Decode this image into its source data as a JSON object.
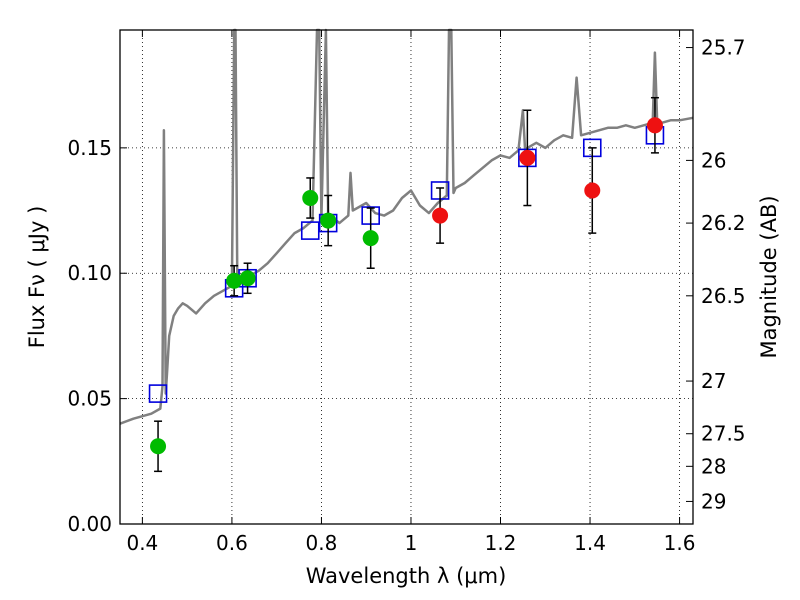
{
  "chart_data": {
    "type": "scatter",
    "title": "",
    "xlabel": "Wavelength  λ (μm)",
    "ylabel": "Flux  Fν  ( μJy )",
    "y2label": "Magnitude (AB)",
    "xlim": [
      0.35,
      1.63
    ],
    "ylim": [
      0.0,
      0.197
    ],
    "grid": true,
    "xticks": [
      0.4,
      0.6,
      0.8,
      1.0,
      1.2,
      1.4,
      1.6
    ],
    "xtick_labels": [
      "0.4",
      "0.6",
      "0.8",
      "1",
      "1.2",
      "1.4",
      "1.6"
    ],
    "yticks": [
      0.0,
      0.05,
      0.1,
      0.15
    ],
    "ytick_labels": [
      "0.00",
      "0.05",
      "0.10",
      "0.15"
    ],
    "y2ticks": [
      {
        "label": "25.7",
        "flux": 0.19
      },
      {
        "label": "26",
        "flux": 0.145
      },
      {
        "label": "26.2",
        "flux": 0.12
      },
      {
        "label": "26.5",
        "flux": 0.091
      },
      {
        "label": "27",
        "flux": 0.057
      },
      {
        "label": "27.5",
        "flux": 0.036
      },
      {
        "label": "28",
        "flux": 0.023
      },
      {
        "label": "29",
        "flux": 0.009
      }
    ],
    "series": [
      {
        "kind": "line",
        "color": "#808080",
        "x": [
          0.35,
          0.38,
          0.4,
          0.42,
          0.44,
          0.445,
          0.448,
          0.452,
          0.455,
          0.46,
          0.47,
          0.48,
          0.49,
          0.5,
          0.52,
          0.54,
          0.56,
          0.58,
          0.6,
          0.605,
          0.608,
          0.612,
          0.62,
          0.64,
          0.66,
          0.68,
          0.7,
          0.72,
          0.74,
          0.76,
          0.78,
          0.79,
          0.795,
          0.8,
          0.81,
          0.815,
          0.82,
          0.84,
          0.86,
          0.865,
          0.87,
          0.88,
          0.9,
          0.92,
          0.94,
          0.96,
          0.98,
          1.0,
          1.02,
          1.04,
          1.06,
          1.08,
          1.085,
          1.09,
          1.095,
          1.1,
          1.12,
          1.14,
          1.16,
          1.18,
          1.2,
          1.22,
          1.24,
          1.25,
          1.255,
          1.26,
          1.28,
          1.3,
          1.32,
          1.34,
          1.36,
          1.37,
          1.38,
          1.4,
          1.42,
          1.44,
          1.46,
          1.48,
          1.5,
          1.52,
          1.54,
          1.545,
          1.55,
          1.56,
          1.58,
          1.6,
          1.63
        ],
        "y": [
          0.04,
          0.042,
          0.043,
          0.044,
          0.046,
          0.055,
          0.157,
          0.052,
          0.06,
          0.075,
          0.083,
          0.086,
          0.088,
          0.087,
          0.084,
          0.088,
          0.091,
          0.093,
          0.095,
          0.197,
          0.197,
          0.097,
          0.096,
          0.099,
          0.101,
          0.104,
          0.108,
          0.112,
          0.116,
          0.118,
          0.121,
          0.197,
          0.197,
          0.122,
          0.197,
          0.122,
          0.123,
          0.12,
          0.123,
          0.14,
          0.125,
          0.126,
          0.128,
          0.124,
          0.123,
          0.125,
          0.13,
          0.133,
          0.127,
          0.124,
          0.128,
          0.131,
          0.197,
          0.197,
          0.132,
          0.134,
          0.136,
          0.139,
          0.142,
          0.145,
          0.147,
          0.146,
          0.149,
          0.165,
          0.149,
          0.15,
          0.152,
          0.15,
          0.153,
          0.155,
          0.154,
          0.178,
          0.155,
          0.156,
          0.157,
          0.158,
          0.158,
          0.159,
          0.158,
          0.159,
          0.16,
          0.188,
          0.16,
          0.16,
          0.161,
          0.161,
          0.162
        ]
      },
      {
        "kind": "square",
        "color": "#0000dd",
        "x": [
          0.435,
          0.605,
          0.635,
          0.775,
          0.815,
          0.91,
          1.065,
          1.26,
          1.405,
          1.545
        ],
        "y": [
          0.052,
          0.094,
          0.098,
          0.117,
          0.12,
          0.123,
          0.133,
          0.146,
          0.15,
          0.155
        ]
      },
      {
        "kind": "dot",
        "color": "#00bb00",
        "x": [
          0.435,
          0.605,
          0.635,
          0.775,
          0.815,
          0.91
        ],
        "y": [
          0.031,
          0.097,
          0.098,
          0.13,
          0.121,
          0.114
        ],
        "err": [
          0.01,
          0.006,
          0.006,
          0.008,
          0.01,
          0.012
        ]
      },
      {
        "kind": "dot",
        "color": "#ee1111",
        "x": [
          1.065,
          1.26,
          1.405,
          1.545
        ],
        "y": [
          0.123,
          0.146,
          0.133,
          0.159
        ],
        "err": [
          0.011,
          0.019,
          0.017,
          0.011
        ]
      }
    ]
  }
}
